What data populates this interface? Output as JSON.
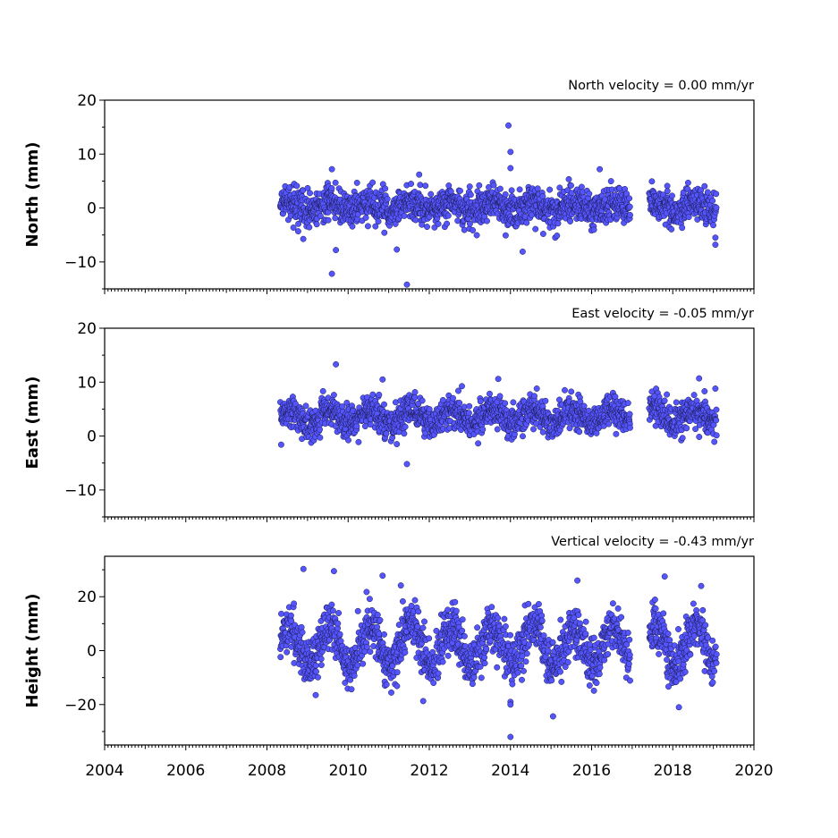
{
  "chart_data": [
    {
      "type": "scatter",
      "title": "North velocity = 0.00 mm/yr",
      "ylabel": "North (mm)",
      "xlim": [
        2004,
        2020
      ],
      "ylim": [
        -15,
        20
      ],
      "yticks": [
        -10,
        0,
        10,
        20
      ],
      "ytick_labels": [
        "−10",
        "0",
        "10",
        "20"
      ],
      "x_tick_labels_visible": false,
      "series": [
        {
          "color": "#5555ff",
          "segments": [
            [
              2008.33,
              2016.95
            ],
            [
              2017.42,
              2019.08
            ]
          ],
          "baseline": 0.3,
          "noise_sd": 1.6,
          "seasonal_amp": 0.8,
          "outliers": [
            {
              "x": 2009.6,
              "y": 7.2
            },
            {
              "x": 2009.6,
              "y": -12.2
            },
            {
              "x": 2009.7,
              "y": -7.8
            },
            {
              "x": 2011.45,
              "y": -14.2
            },
            {
              "x": 2011.2,
              "y": -7.7
            },
            {
              "x": 2011.75,
              "y": 6.2
            },
            {
              "x": 2013.95,
              "y": 15.3
            },
            {
              "x": 2014.0,
              "y": 10.4
            },
            {
              "x": 2014.0,
              "y": 7.4
            },
            {
              "x": 2014.3,
              "y": -8.1
            },
            {
              "x": 2016.2,
              "y": 7.2
            },
            {
              "x": 2019.05,
              "y": -6.8
            },
            {
              "x": 2019.05,
              "y": -5.5
            }
          ]
        }
      ]
    },
    {
      "type": "scatter",
      "title": "East velocity = -0.05 mm/yr",
      "ylabel": "East (mm)",
      "xlim": [
        2004,
        2020
      ],
      "ylim": [
        -15,
        20
      ],
      "yticks": [
        -10,
        0,
        10,
        20
      ],
      "ytick_labels": [
        "−10",
        "0",
        "10",
        "20"
      ],
      "x_tick_labels_visible": false,
      "series": [
        {
          "color": "#5555ff",
          "segments": [
            [
              2008.33,
              2016.95
            ],
            [
              2017.42,
              2019.08
            ]
          ],
          "baseline": 3.6,
          "noise_sd": 1.5,
          "seasonal_amp": 1.3,
          "outliers": [
            {
              "x": 2008.35,
              "y": -1.6
            },
            {
              "x": 2009.7,
              "y": 13.3
            },
            {
              "x": 2010.85,
              "y": 10.5
            },
            {
              "x": 2011.45,
              "y": -5.2
            },
            {
              "x": 2011.2,
              "y": -1.5
            },
            {
              "x": 2013.7,
              "y": 10.6
            },
            {
              "x": 2014.65,
              "y": 8.8
            },
            {
              "x": 2017.55,
              "y": 7.4
            },
            {
              "x": 2018.65,
              "y": 10.7
            },
            {
              "x": 2019.05,
              "y": 8.8
            }
          ]
        }
      ]
    },
    {
      "type": "scatter",
      "title": "Vertical velocity = -0.43 mm/yr",
      "ylabel": "Height (mm)",
      "xlim": [
        2004,
        2020
      ],
      "ylim": [
        -35,
        35
      ],
      "yticks": [
        -20,
        0,
        20
      ],
      "ytick_labels": [
        "−20",
        "0",
        "20"
      ],
      "xticks": [
        2004,
        2006,
        2008,
        2010,
        2012,
        2014,
        2016,
        2018,
        2020
      ],
      "xtick_labels": [
        "2004",
        "2006",
        "2008",
        "2010",
        "2012",
        "2014",
        "2016",
        "2018",
        "2020"
      ],
      "x_tick_labels_visible": true,
      "series": [
        {
          "color": "#5555ff",
          "segments": [
            [
              2008.33,
              2016.95
            ],
            [
              2017.42,
              2019.08
            ]
          ],
          "baseline": 1.8,
          "noise_sd": 4.5,
          "seasonal_amp": 7.5,
          "outliers": [
            {
              "x": 2008.9,
              "y": 30.3
            },
            {
              "x": 2009.65,
              "y": 29.5
            },
            {
              "x": 2010.85,
              "y": 27.8
            },
            {
              "x": 2011.3,
              "y": 24.2
            },
            {
              "x": 2011.85,
              "y": -18.7
            },
            {
              "x": 2014.0,
              "y": -19.0
            },
            {
              "x": 2014.0,
              "y": -20.0
            },
            {
              "x": 2014.0,
              "y": -32.0
            },
            {
              "x": 2015.05,
              "y": -24.4
            },
            {
              "x": 2015.65,
              "y": 26.0
            },
            {
              "x": 2017.8,
              "y": 27.5
            },
            {
              "x": 2018.7,
              "y": 24.0
            },
            {
              "x": 2009.2,
              "y": -16.5
            },
            {
              "x": 2018.15,
              "y": -21.0
            }
          ]
        }
      ]
    }
  ]
}
